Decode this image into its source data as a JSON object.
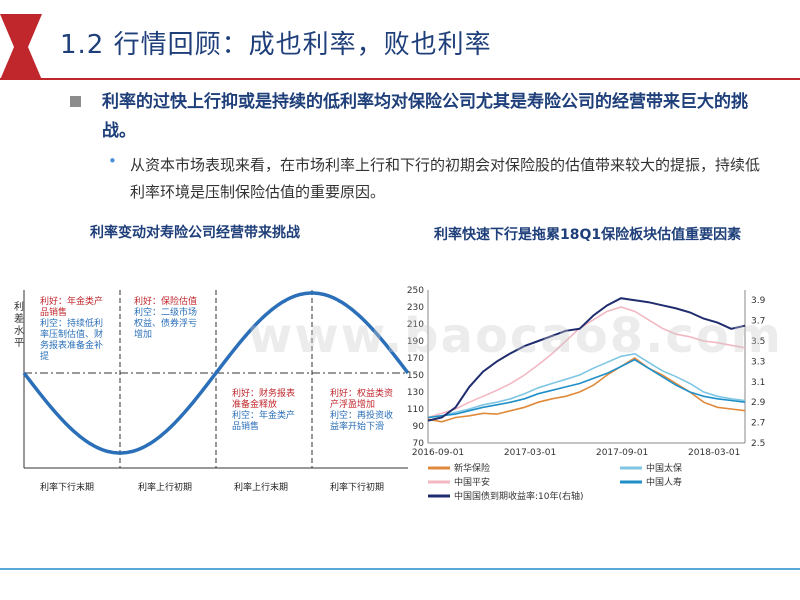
{
  "slide": {
    "title": "1.2 行情回顾：成也利率，败也利率",
    "bullet_main": "利率的过快上行抑或是持续的低利率均对保险公司尤其是寿险公司的经营带来巨大的挑战。",
    "bullet_sub": "从资本市场表现来看，在市场利率上行和下行的初期会对保险股的估值带来较大的提振，持续低利率环境是压制保险估值的重要原因。",
    "watermark": "www.baocao8.com",
    "colors": {
      "title": "#1f3f7a",
      "red_bar": "#c0272d",
      "accent_blue": "#2a6fb8"
    }
  },
  "left_chart": {
    "title": "利率变动对寿险公司经营带来挑战",
    "ylabel": "利差水平",
    "phases": [
      "利率下行末期",
      "利率上行初期",
      "利率上行末期",
      "利率下行初期"
    ],
    "notes": [
      [
        "利好：年金类产",
        "品销售",
        "利空：持续低利",
        "率压制估值、财",
        "务报表准备金补",
        "提"
      ],
      [
        "利好：保险估值",
        "利空：二级市场",
        "权益、债券浮亏",
        "增加"
      ],
      [
        "利好：财务报表",
        "准备金释放",
        "利空：年金类产",
        "品销售"
      ],
      [
        "利好：权益类资",
        "产浮盈增加",
        "利空：再投资收",
        "益率开始下滑"
      ]
    ]
  },
  "chart_data": {
    "type": "line",
    "title": "利率快速下行是拖累18Q1保险板块估值重要因素",
    "x_tick_labels": [
      "2016-09-01",
      "2017-03-01",
      "2017-09-01",
      "2018-03-01"
    ],
    "y_left_ticks": [
      70,
      90,
      110,
      130,
      150,
      170,
      190,
      210,
      230,
      250
    ],
    "y_right_ticks": [
      2.5,
      2.7,
      2.9,
      3.1,
      3.3,
      3.5,
      3.7,
      3.9
    ],
    "ylim_left": [
      70,
      250
    ],
    "ylim_right": [
      2.5,
      4.0
    ],
    "series": [
      {
        "name": "新华保险",
        "color": "#e08a3c",
        "axis": "left",
        "values": [
          98,
          95,
          100,
          102,
          105,
          104,
          108,
          112,
          118,
          122,
          125,
          130,
          138,
          150,
          160,
          170,
          158,
          150,
          140,
          130,
          118,
          112,
          110,
          108
        ]
      },
      {
        "name": "中国太保",
        "color": "#7fc6e4",
        "axis": "left",
        "values": [
          100,
          102,
          106,
          110,
          115,
          118,
          122,
          128,
          135,
          140,
          145,
          150,
          158,
          165,
          172,
          175,
          165,
          155,
          148,
          140,
          130,
          125,
          122,
          120
        ]
      },
      {
        "name": "中国平安",
        "color": "#f2b8c2",
        "axis": "left",
        "values": [
          100,
          105,
          110,
          118,
          125,
          132,
          140,
          150,
          162,
          175,
          190,
          205,
          215,
          225,
          230,
          225,
          215,
          205,
          198,
          195,
          190,
          188,
          185,
          182
        ]
      },
      {
        "name": "中国人寿",
        "color": "#1f8fc7",
        "axis": "left",
        "values": [
          100,
          102,
          104,
          108,
          112,
          115,
          118,
          122,
          128,
          132,
          136,
          140,
          146,
          152,
          160,
          168,
          158,
          148,
          138,
          130,
          125,
          122,
          120,
          118
        ]
      },
      {
        "name": "中国国债到期收益率:10年(右轴)",
        "color": "#1f2d6e",
        "axis": "right",
        "values": [
          2.72,
          2.75,
          2.85,
          3.05,
          3.2,
          3.3,
          3.38,
          3.45,
          3.5,
          3.55,
          3.6,
          3.62,
          3.75,
          3.85,
          3.92,
          3.9,
          3.88,
          3.85,
          3.82,
          3.78,
          3.72,
          3.68,
          3.62,
          3.65
        ]
      }
    ]
  }
}
